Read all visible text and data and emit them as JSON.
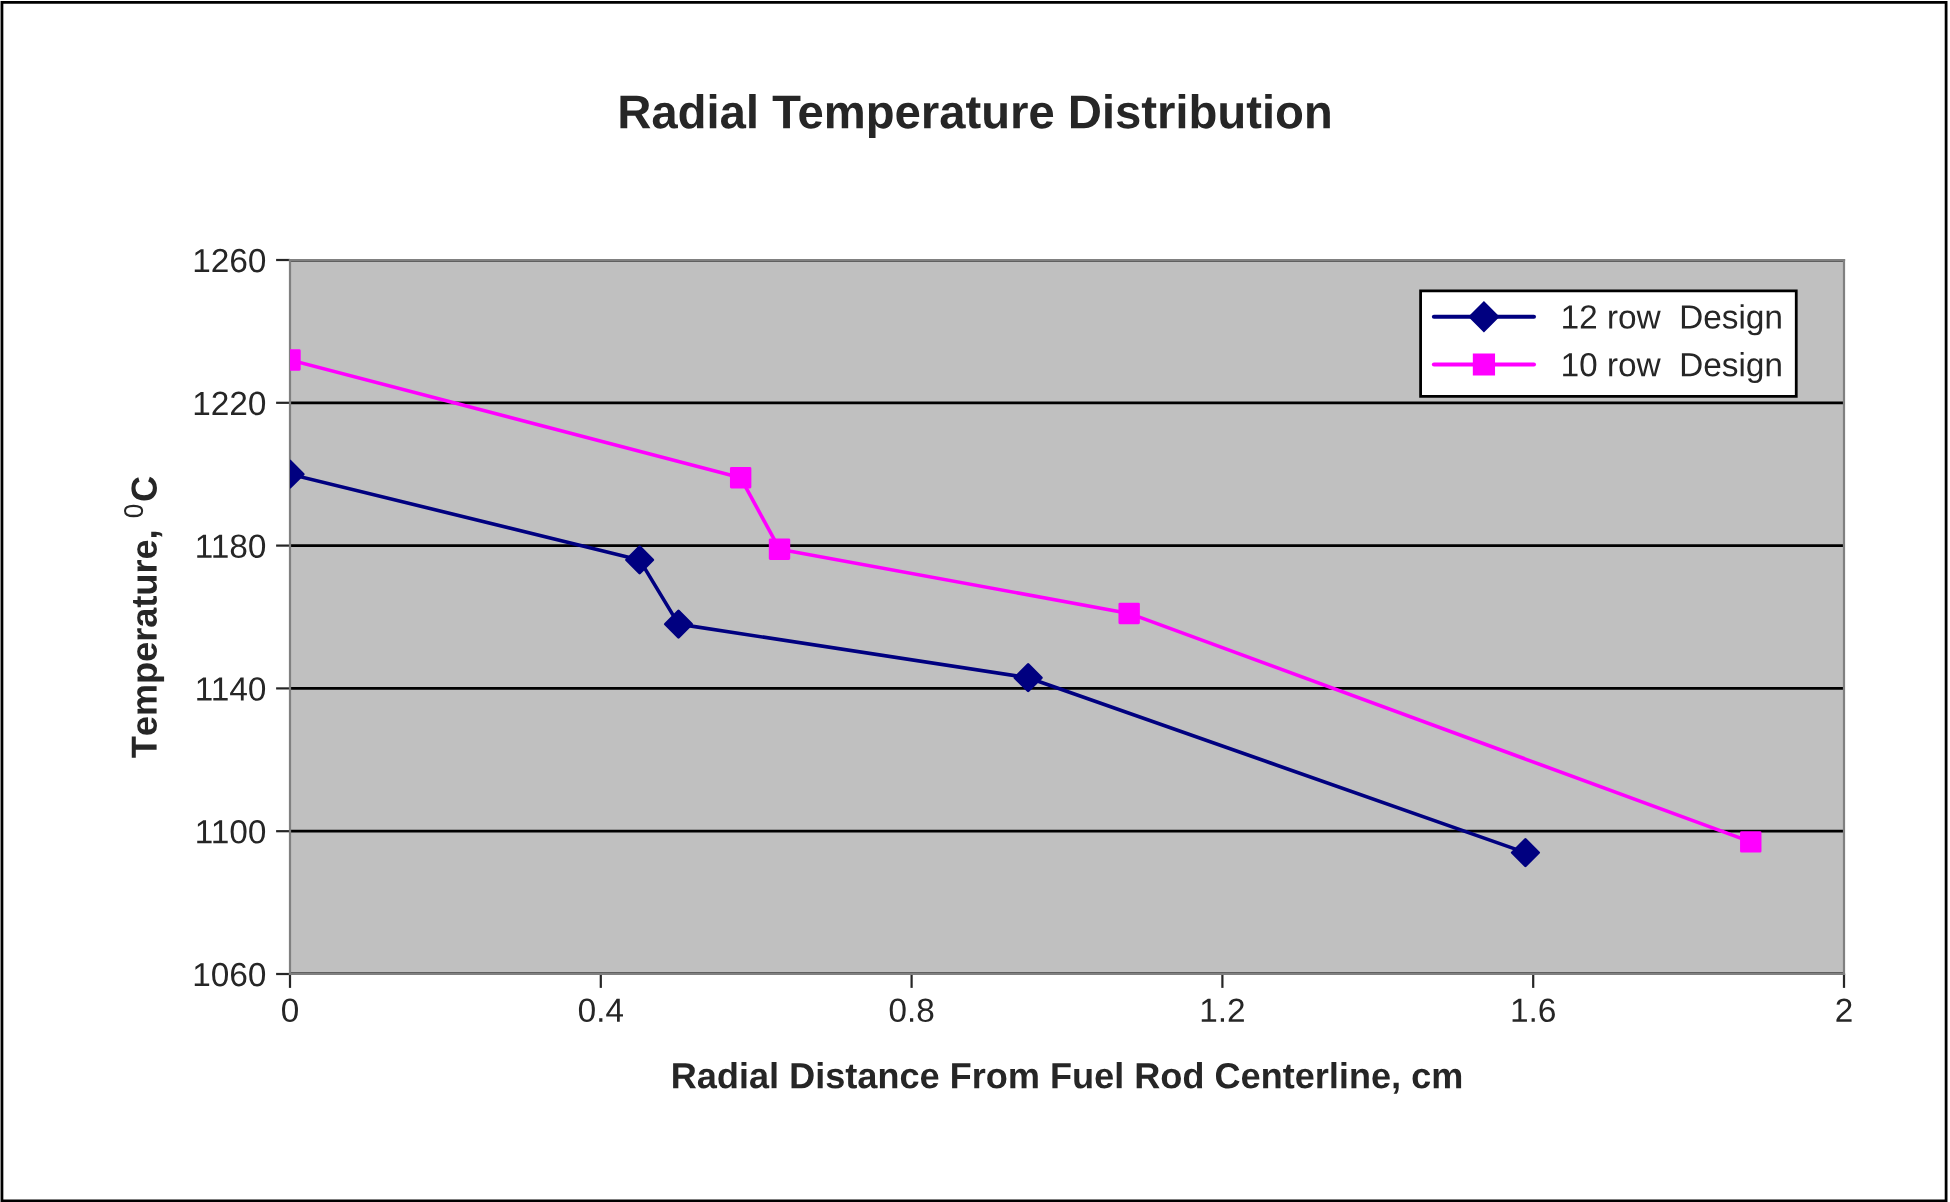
{
  "chart_data": {
    "type": "line",
    "title": "Radial Temperature Distribution",
    "xlabel": "Radial Distance From Fuel Rod Centerline, cm",
    "ylabel": "Temperature, $^{0}$C",
    "series": [
      {
        "name": "12 row  Design",
        "color": "#000080",
        "marker": "diamond",
        "x": [
          0,
          0.45,
          0.5,
          0.95,
          1.59
        ],
        "values": [
          1200,
          1176,
          1158,
          1143,
          1094
        ]
      },
      {
        "name": "10 row  Design",
        "color": "#ff00ff",
        "marker": "square",
        "x": [
          0,
          0.58,
          0.63,
          1.08,
          1.88
        ],
        "values": [
          1232,
          1199,
          1179,
          1161,
          1097
        ]
      }
    ],
    "xlim": [
      0,
      2
    ],
    "xticks": [
      0,
      0.4,
      0.8,
      1.2,
      1.6,
      2
    ],
    "ylim": [
      1060,
      1260
    ],
    "yticks": [
      1060,
      1100,
      1140,
      1180,
      1220,
      1260
    ],
    "grid": "y",
    "legend": "top right",
    "line_style": "solid"
  }
}
